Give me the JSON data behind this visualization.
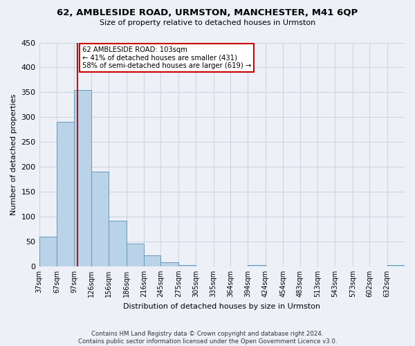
{
  "title": "62, AMBLESIDE ROAD, URMSTON, MANCHESTER, M41 6QP",
  "subtitle": "Size of property relative to detached houses in Urmston",
  "xlabel": "Distribution of detached houses by size in Urmston",
  "ylabel": "Number of detached properties",
  "footer_line1": "Contains HM Land Registry data © Crown copyright and database right 2024.",
  "footer_line2": "Contains public sector information licensed under the Open Government Licence v3.0.",
  "bar_labels": [
    "37sqm",
    "67sqm",
    "97sqm",
    "126sqm",
    "156sqm",
    "186sqm",
    "216sqm",
    "245sqm",
    "275sqm",
    "305sqm",
    "335sqm",
    "364sqm",
    "394sqm",
    "424sqm",
    "454sqm",
    "483sqm",
    "513sqm",
    "543sqm",
    "573sqm",
    "602sqm",
    "632sqm"
  ],
  "bar_values": [
    60,
    290,
    355,
    190,
    92,
    46,
    22,
    8,
    2,
    0,
    0,
    0,
    2,
    0,
    0,
    0,
    0,
    0,
    0,
    0,
    2
  ],
  "bar_color": "#bad3e8",
  "bar_edge_color": "#6699bb",
  "annotation_line1": "62 AMBLESIDE ROAD: 103sqm",
  "annotation_line2": "← 41% of detached houses are smaller (431)",
  "annotation_line3": "58% of semi-detached houses are larger (619) →",
  "annotation_box_color": "white",
  "annotation_box_edge_color": "#cc0000",
  "vline_x": 103,
  "vline_color": "#cc0000",
  "ylim": [
    0,
    450
  ],
  "yticks": [
    0,
    50,
    100,
    150,
    200,
    250,
    300,
    350,
    400,
    450
  ],
  "grid_color": "#ccd5e0",
  "background_color": "#edf1f7",
  "bin_edges": [
    37,
    67,
    97,
    126,
    156,
    186,
    216,
    245,
    275,
    305,
    335,
    364,
    394,
    424,
    454,
    483,
    513,
    543,
    573,
    602,
    632,
    662
  ],
  "xlim_left": 37,
  "xlim_right": 662
}
